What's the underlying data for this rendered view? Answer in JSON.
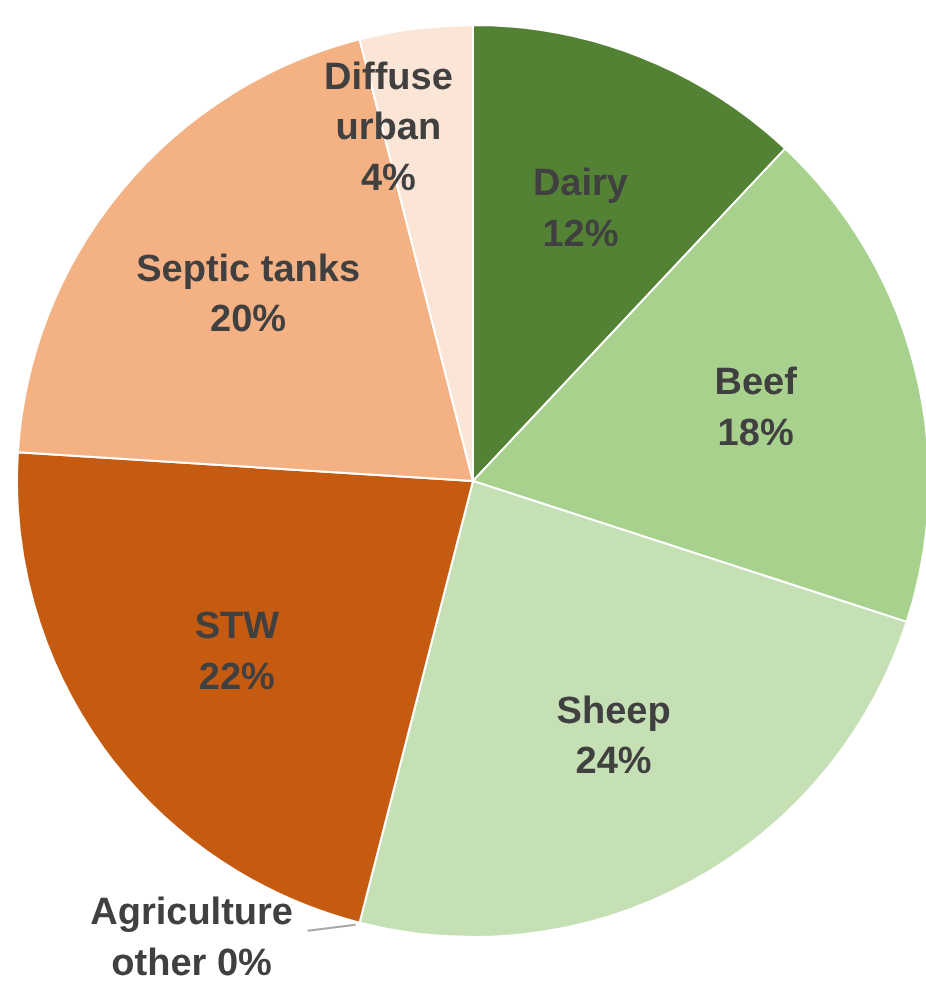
{
  "chart_data": {
    "type": "pie",
    "categories": [
      "Dairy",
      "Beef",
      "Sheep",
      "Agriculture other",
      "STW",
      "Septic tanks",
      "Diffuse urban"
    ],
    "values": [
      12,
      18,
      24,
      0,
      22,
      20,
      4
    ],
    "colors": [
      "#548235",
      "#a9d18e",
      "#c5e0b4",
      null,
      "#c55a11",
      "#f4b183",
      "#fbe5d6"
    ],
    "value_labels": [
      "12%",
      "18%",
      "24%",
      "0%",
      "22%",
      "20%",
      "4%"
    ]
  }
}
